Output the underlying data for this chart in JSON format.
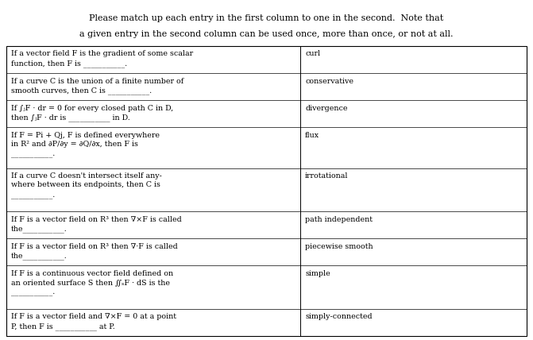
{
  "title_line1": "Please match up each entry in the first column to one in the second.  Note that",
  "title_line2": "a given entry in the second column can be used once, more than once, or not at all.",
  "rows": [
    {
      "left": "If a vector field F is the gradient of some scalar\nfunction, then F is ___________.",
      "right": "curl"
    },
    {
      "left": "If a curve C is the union of a finite number of\nsmooth curves, then C is ___________.",
      "right": "conservative"
    },
    {
      "left": "If ∫ⱼF · dr = 0 for every closed path C in D,\nthen ∫ⱼF · dr is ___________ in D.",
      "right": "divergence"
    },
    {
      "left": "If F = Pi + Qj, F is defined everywhere\nin R² and ∂P/∂y = ∂Q/∂x, then F is\n___________.",
      "right": "flux"
    },
    {
      "left": "If a curve C doesn't intersect itself any-\nwhere between its endpoints, then C is\n___________.",
      "right": "irrotational"
    },
    {
      "left": "If F is a vector field on R³ then ∇×F is called\nthe___________.",
      "right": "path independent"
    },
    {
      "left": "If F is a vector field on R³ then ∇·F is called\nthe___________.",
      "right": "piecewise smooth"
    },
    {
      "left": "If F is a continuous vector field defined on\nan oriented surface S then ∬ₛF · dS is the\n___________.",
      "right": "simple"
    },
    {
      "left": "If F is a vector field and ∇×F = 0 at a point\nP, then F is ___________ at P.",
      "right": "simply-connected"
    }
  ],
  "bg_color": "#ffffff",
  "text_color": "#000000",
  "border_color": "#000000",
  "title_fontsize": 8.0,
  "cell_fontsize": 6.8,
  "fig_width": 6.71,
  "fig_height": 4.28,
  "dpi": 100
}
